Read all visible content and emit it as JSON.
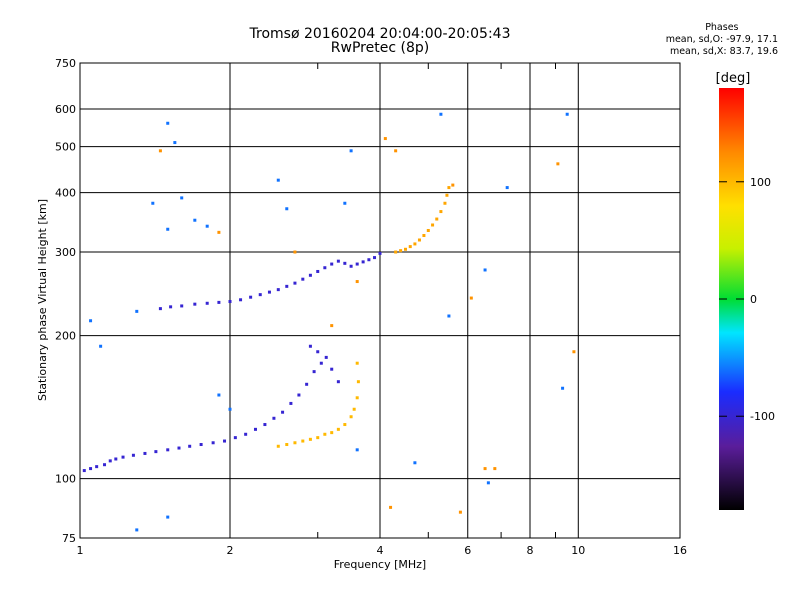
{
  "header": {
    "title": "Tromsø 20160204 20:04:00-20:05:43",
    "subtitle": "RwPretec (8p)"
  },
  "stats": {
    "title": "Phases",
    "line1": "mean, sd,O: -97.9, 17.1",
    "line2": "mean, sd,X:  83.7, 19.6"
  },
  "chart_data": {
    "type": "scatter",
    "title": "Tromsø 20160204 20:04:00-20:05:43",
    "subtitle": "RwPretec (8p)",
    "xlabel": "Frequency [MHz]",
    "ylabel": "Stationary phase Virtual Height [km]",
    "xscale": "log",
    "yscale": "log",
    "xlim": [
      1,
      16
    ],
    "ylim": [
      75,
      750
    ],
    "xticks": [
      1,
      2,
      4,
      6,
      8,
      10,
      16
    ],
    "xtick_labels": [
      "1",
      "2",
      "4",
      "6",
      "8",
      "10",
      "16"
    ],
    "yticks": [
      75,
      100,
      200,
      300,
      400,
      500,
      600,
      750
    ],
    "ytick_labels": [
      "75",
      "100",
      "200",
      "300",
      "400",
      "500",
      "600",
      "750"
    ],
    "grid": true,
    "colorbar": {
      "label": "[deg]",
      "range": [
        -180,
        180
      ],
      "ticks": [
        100,
        0,
        -100
      ],
      "tick_labels": [
        "100",
        "0",
        "-100"
      ]
    },
    "series": [
      {
        "trace": "E and F1 O-mode",
        "color_value": -100,
        "points": [
          [
            1.02,
            104
          ],
          [
            1.05,
            105
          ],
          [
            1.08,
            106
          ],
          [
            1.12,
            107
          ],
          [
            1.15,
            109
          ],
          [
            1.18,
            110
          ],
          [
            1.22,
            111
          ],
          [
            1.28,
            112
          ],
          [
            1.35,
            113
          ],
          [
            1.42,
            114
          ],
          [
            1.5,
            115
          ],
          [
            1.58,
            116
          ],
          [
            1.66,
            117
          ],
          [
            1.75,
            118
          ],
          [
            1.85,
            119
          ],
          [
            1.95,
            120
          ],
          [
            2.05,
            122
          ],
          [
            2.15,
            124
          ],
          [
            2.25,
            127
          ],
          [
            2.35,
            130
          ],
          [
            2.45,
            134
          ],
          [
            2.55,
            138
          ],
          [
            2.65,
            144
          ],
          [
            2.75,
            150
          ],
          [
            2.85,
            158
          ],
          [
            2.95,
            168
          ],
          [
            3.05,
            175
          ],
          [
            3.12,
            180
          ],
          [
            3.2,
            170
          ],
          [
            3.3,
            160
          ],
          [
            3.0,
            185
          ],
          [
            2.9,
            190
          ]
        ]
      },
      {
        "trace": "F2 O-mode",
        "color_value": -100,
        "points": [
          [
            1.45,
            228
          ],
          [
            1.52,
            230
          ],
          [
            1.6,
            231
          ],
          [
            1.7,
            233
          ],
          [
            1.8,
            234
          ],
          [
            1.9,
            235
          ],
          [
            2.0,
            236
          ],
          [
            2.1,
            238
          ],
          [
            2.2,
            241
          ],
          [
            2.3,
            244
          ],
          [
            2.4,
            247
          ],
          [
            2.5,
            250
          ],
          [
            2.6,
            254
          ],
          [
            2.7,
            258
          ],
          [
            2.8,
            263
          ],
          [
            2.9,
            268
          ],
          [
            3.0,
            273
          ],
          [
            3.1,
            278
          ],
          [
            3.2,
            283
          ],
          [
            3.3,
            287
          ],
          [
            3.4,
            284
          ],
          [
            3.5,
            280
          ],
          [
            3.6,
            283
          ],
          [
            3.7,
            286
          ],
          [
            3.8,
            289
          ],
          [
            3.9,
            292
          ],
          [
            4.0,
            298
          ]
        ]
      },
      {
        "trace": "E and F1 X-mode",
        "color_value": 100,
        "points": [
          [
            2.5,
            117
          ],
          [
            2.6,
            118
          ],
          [
            2.7,
            119
          ],
          [
            2.8,
            120
          ],
          [
            2.9,
            121
          ],
          [
            3.0,
            122
          ],
          [
            3.1,
            124
          ],
          [
            3.2,
            125
          ],
          [
            3.3,
            127
          ],
          [
            3.4,
            130
          ],
          [
            3.5,
            135
          ],
          [
            3.55,
            140
          ],
          [
            3.6,
            148
          ],
          [
            3.62,
            160
          ],
          [
            3.6,
            175
          ]
        ]
      },
      {
        "trace": "F2 X-mode",
        "color_value": 110,
        "points": [
          [
            4.3,
            300
          ],
          [
            4.4,
            302
          ],
          [
            4.5,
            304
          ],
          [
            4.6,
            308
          ],
          [
            4.7,
            312
          ],
          [
            4.8,
            318
          ],
          [
            4.9,
            325
          ],
          [
            5.0,
            333
          ],
          [
            5.1,
            342
          ],
          [
            5.2,
            352
          ],
          [
            5.3,
            365
          ],
          [
            5.4,
            380
          ],
          [
            5.45,
            395
          ],
          [
            5.5,
            410
          ]
        ]
      },
      {
        "trace": "scattered echoes",
        "color_value": -60,
        "points": [
          [
            1.5,
            560
          ],
          [
            1.55,
            510
          ],
          [
            1.4,
            380
          ],
          [
            1.5,
            335
          ],
          [
            1.6,
            390
          ],
          [
            1.7,
            350
          ],
          [
            1.8,
            340
          ],
          [
            2.5,
            425
          ],
          [
            2.6,
            370
          ],
          [
            3.4,
            380
          ],
          [
            3.5,
            490
          ],
          [
            5.3,
            585
          ],
          [
            9.5,
            585
          ],
          [
            7.2,
            410
          ],
          [
            6.5,
            275
          ],
          [
            5.5,
            220
          ],
          [
            1.05,
            215
          ],
          [
            1.3,
            225
          ],
          [
            1.1,
            190
          ],
          [
            9.3,
            155
          ],
          [
            3.6,
            115
          ],
          [
            4.7,
            108
          ],
          [
            6.6,
            98
          ],
          [
            1.5,
            83
          ],
          [
            1.3,
            78
          ],
          [
            2.0,
            140
          ],
          [
            1.9,
            150
          ]
        ]
      },
      {
        "trace": "scattered echoes (warm)",
        "color_value": 120,
        "points": [
          [
            4.1,
            520
          ],
          [
            4.3,
            490
          ],
          [
            1.45,
            490
          ],
          [
            2.7,
            300
          ],
          [
            6.1,
            240
          ],
          [
            6.5,
            105
          ],
          [
            6.8,
            105
          ],
          [
            4.2,
            87
          ],
          [
            5.8,
            85
          ],
          [
            9.1,
            460
          ],
          [
            9.8,
            185
          ],
          [
            5.6,
            415
          ],
          [
            3.6,
            260
          ],
          [
            3.2,
            210
          ],
          [
            1.9,
            330
          ]
        ]
      }
    ]
  }
}
